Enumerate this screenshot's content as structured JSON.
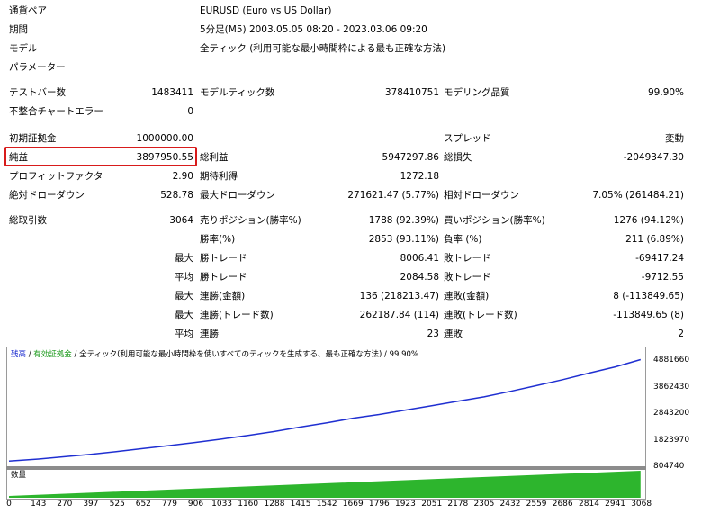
{
  "info": {
    "symbol_label": "通貨ペア",
    "symbol_value": "EURUSD (Euro vs US Dollar)",
    "period_label": "期間",
    "period_value": "5分足(M5) 2003.05.05 08:20 - 2023.03.06 09:20",
    "model_label": "モデル",
    "model_value": "全ティック (利用可能な最小時間枠による最も正確な方法)",
    "params_label": "パラメーター"
  },
  "stats": {
    "bars_label": "テストバー数",
    "bars_value": "1483411",
    "ticks_label": "モデルティック数",
    "ticks_value": "378410751",
    "quality_label": "モデリング品質",
    "quality_value": "99.90%",
    "mismatch_label": "不整合チャートエラー",
    "mismatch_value": "0",
    "deposit_label": "初期証拠金",
    "deposit_value": "1000000.00",
    "spread_label": "スプレッド",
    "spread_value": "変動",
    "net_label": "純益",
    "net_value": "3897950.55",
    "gross_profit_label": "総利益",
    "gross_profit_value": "5947297.86",
    "gross_loss_label": "総損失",
    "gross_loss_value": "-2049347.30",
    "pf_label": "プロフィットファクタ",
    "pf_value": "2.90",
    "expected_label": "期待利得",
    "expected_value": "1272.18",
    "abs_dd_label": "絶対ドローダウン",
    "abs_dd_value": "528.78",
    "max_dd_label": "最大ドローダウン",
    "max_dd_value": "271621.47 (5.77%)",
    "rel_dd_label": "相対ドローダウン",
    "rel_dd_value": "7.05% (261484.21)",
    "trades_label": "総取引数",
    "trades_value": "3064",
    "short_label": "売りポジション(勝率%)",
    "short_value": "1788 (92.39%)",
    "long_label": "買いポジション(勝率%)",
    "long_value": "1276 (94.12%)",
    "win_rate_label": "勝率(%)",
    "win_rate_value": "2853 (93.11%)",
    "loss_rate_label": "負率 (%)",
    "loss_rate_value": "211 (6.89%)",
    "max_word": "最大",
    "avg_word": "平均",
    "max_win_label": "勝トレード",
    "max_win_value": "8006.41",
    "max_loss_label": "敗トレード",
    "max_loss_value": "-69417.24",
    "avg_win_label": "勝トレード",
    "avg_win_value": "2084.58",
    "avg_loss_label": "敗トレード",
    "avg_loss_value": "-9712.55",
    "cons_win_amt_label": "連勝(金額)",
    "cons_win_amt_value": "136 (218213.47)",
    "cons_loss_amt_label": "連敗(金額)",
    "cons_loss_amt_value": "8 (-113849.65)",
    "cons_win_cnt_label": "連勝(トレード数)",
    "cons_win_cnt_value": "262187.84 (114)",
    "cons_loss_cnt_label": "連敗(トレード数)",
    "cons_loss_cnt_value": "-113849.65 (8)",
    "avg_cons_win_label": "連勝",
    "avg_cons_win_value": "23",
    "avg_cons_loss_label": "連敗",
    "avg_cons_loss_value": "2"
  },
  "chart": {
    "legend_balance": "残高",
    "legend_sep1": " / ",
    "legend_equity": "有効証拠金",
    "legend_sep2": " / ",
    "legend_model": "全ティック(利用可能な最小時間枠を使いすべてのティックを生成する、最も正確な方法)",
    "legend_sep3": " / ",
    "legend_quality": "99.90%",
    "volume_label": "数量",
    "balance_color": "#1f2fd1",
    "volume_color": "#2db52d"
  },
  "chart_data": {
    "type": "line",
    "y_ticks": [
      "4881660",
      "3862430",
      "2843200",
      "1823970",
      "804740"
    ],
    "x_ticks": [
      "0",
      "143",
      "270",
      "397",
      "525",
      "652",
      "779",
      "906",
      "1033",
      "1160",
      "1288",
      "1415",
      "1542",
      "1669",
      "1796",
      "1923",
      "2051",
      "2178",
      "2305",
      "2432",
      "2559",
      "2686",
      "2814",
      "2941",
      "3068"
    ],
    "ylim": [
      804740,
      4881660
    ],
    "series": [
      {
        "name": "残高",
        "x": [
          0,
          143,
          270,
          397,
          525,
          652,
          779,
          906,
          1033,
          1160,
          1288,
          1415,
          1542,
          1669,
          1796,
          1923,
          2051,
          2178,
          2305,
          2432,
          2559,
          2686,
          2814,
          2941,
          3064
        ],
        "values": [
          1000000,
          1080000,
          1170000,
          1260000,
          1370000,
          1490000,
          1600000,
          1720000,
          1850000,
          1990000,
          2140000,
          2310000,
          2470000,
          2650000,
          2790000,
          2960000,
          3130000,
          3300000,
          3470000,
          3680000,
          3900000,
          4130000,
          4380000,
          4620000,
          4897950
        ]
      }
    ]
  }
}
